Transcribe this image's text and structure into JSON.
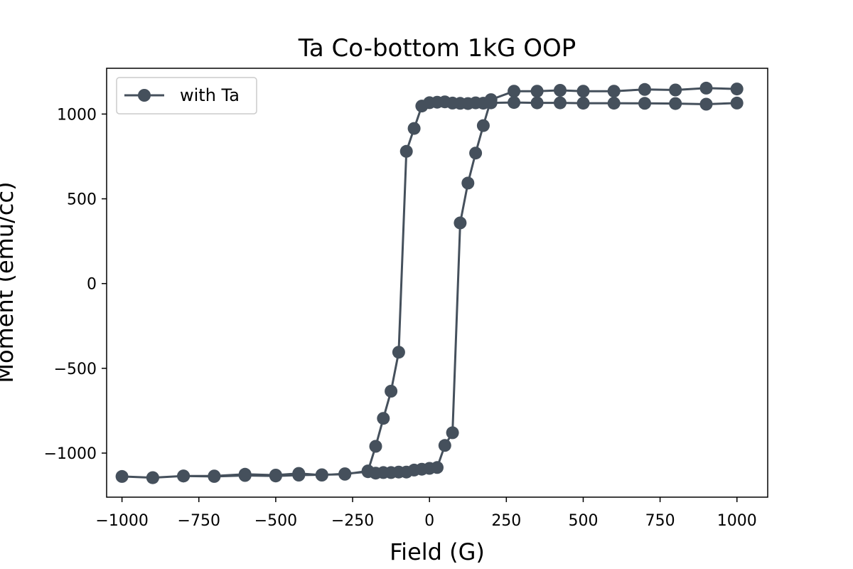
{
  "chart_data": {
    "type": "line",
    "title": "Ta Co-bottom 1kG OOP",
    "xlabel": "Field (G)",
    "ylabel": "Moment (emu/cc)",
    "xlim": [
      -1050,
      1100
    ],
    "ylim": [
      -1260,
      1270
    ],
    "xticks": [
      -1000,
      -750,
      -500,
      -250,
      0,
      250,
      500,
      750,
      1000
    ],
    "yticks": [
      -1000,
      -500,
      0,
      500,
      1000
    ],
    "xtick_labels": [
      "−1000",
      "−750",
      "−500",
      "−250",
      "0",
      "250",
      "500",
      "750",
      "1000"
    ],
    "ytick_labels": [
      "−1000",
      "−500",
      "0",
      "500",
      "1000"
    ],
    "grid": false,
    "legend_position": "top-left",
    "series_color": "#45505c",
    "series": [
      {
        "name": "with Ta",
        "x": [
          1000,
          900,
          800,
          700,
          600,
          500,
          425,
          350,
          275,
          200,
          175,
          150,
          125,
          100,
          75,
          50,
          25,
          0,
          -25,
          -50,
          -75,
          -100,
          -125,
          -150,
          -175,
          -200,
          -275,
          -350,
          -425,
          -500,
          -600,
          -700,
          -800,
          -900,
          -1000,
          -900,
          -800,
          -700,
          -600,
          -500,
          -425,
          -350,
          -275,
          -200,
          -175,
          -150,
          -125,
          -100,
          -75,
          -50,
          -25,
          0,
          25,
          50,
          75,
          100,
          125,
          150,
          175,
          200,
          275,
          350,
          425,
          500,
          600,
          700,
          800,
          900,
          1000
        ],
        "y": [
          1065,
          1058,
          1062,
          1063,
          1064,
          1064,
          1066,
          1066,
          1068,
          1066,
          1064,
          1066,
          1062,
          1063,
          1065,
          1072,
          1070,
          1067,
          1047,
          915,
          780,
          -405,
          -635,
          -795,
          -960,
          -1105,
          -1125,
          -1128,
          -1130,
          -1135,
          -1132,
          -1138,
          -1135,
          -1145,
          -1138,
          -1145,
          -1135,
          -1135,
          -1125,
          -1130,
          -1120,
          -1130,
          -1122,
          -1110,
          -1118,
          -1115,
          -1115,
          -1112,
          -1112,
          -1100,
          -1095,
          -1090,
          -1085,
          -955,
          -880,
          358,
          593,
          770,
          932,
          1085,
          1135,
          1135,
          1140,
          1135,
          1135,
          1145,
          1142,
          1153,
          1148
        ]
      }
    ]
  }
}
